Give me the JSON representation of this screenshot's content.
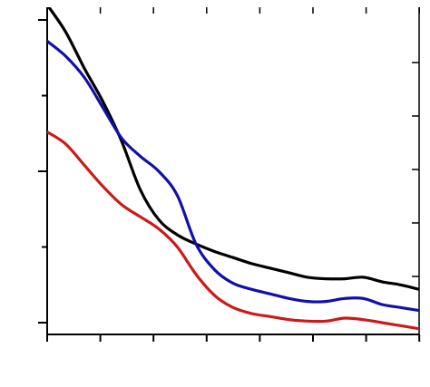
{
  "chart_data": {
    "type": "line",
    "title": "",
    "xlabel": "",
    "ylabel": "",
    "xlim": [
      0,
      10
    ],
    "ylim": [
      0,
      10
    ],
    "grid": false,
    "legend": "none",
    "x": [
      0,
      0.5,
      1,
      1.5,
      2,
      2.5,
      3,
      3.5,
      4,
      4.5,
      5,
      5.5,
      6,
      6.5,
      7,
      7.5,
      8,
      8.5,
      9,
      9.5,
      10
    ],
    "series": [
      {
        "color": "#000000",
        "values": [
          10.5,
          9.6,
          8.4,
          7.3,
          6.0,
          4.4,
          3.4,
          2.9,
          2.6,
          2.35,
          2.15,
          1.95,
          1.8,
          1.65,
          1.5,
          1.45,
          1.45,
          1.5,
          1.35,
          1.25,
          1.1
        ]
      },
      {
        "color": "#1010aa",
        "values": [
          9.3,
          8.8,
          8.1,
          7.1,
          6.1,
          5.5,
          5.0,
          4.2,
          2.6,
          1.75,
          1.3,
          1.1,
          0.95,
          0.8,
          0.7,
          0.7,
          0.8,
          0.8,
          0.6,
          0.5,
          0.4
        ]
      },
      {
        "color": "#cc1a1a",
        "values": [
          6.3,
          5.9,
          5.2,
          4.5,
          3.9,
          3.5,
          3.1,
          2.5,
          1.6,
          0.9,
          0.5,
          0.3,
          0.2,
          0.1,
          0.05,
          0.05,
          0.15,
          0.1,
          0.0,
          -0.1,
          -0.2
        ]
      }
    ]
  }
}
